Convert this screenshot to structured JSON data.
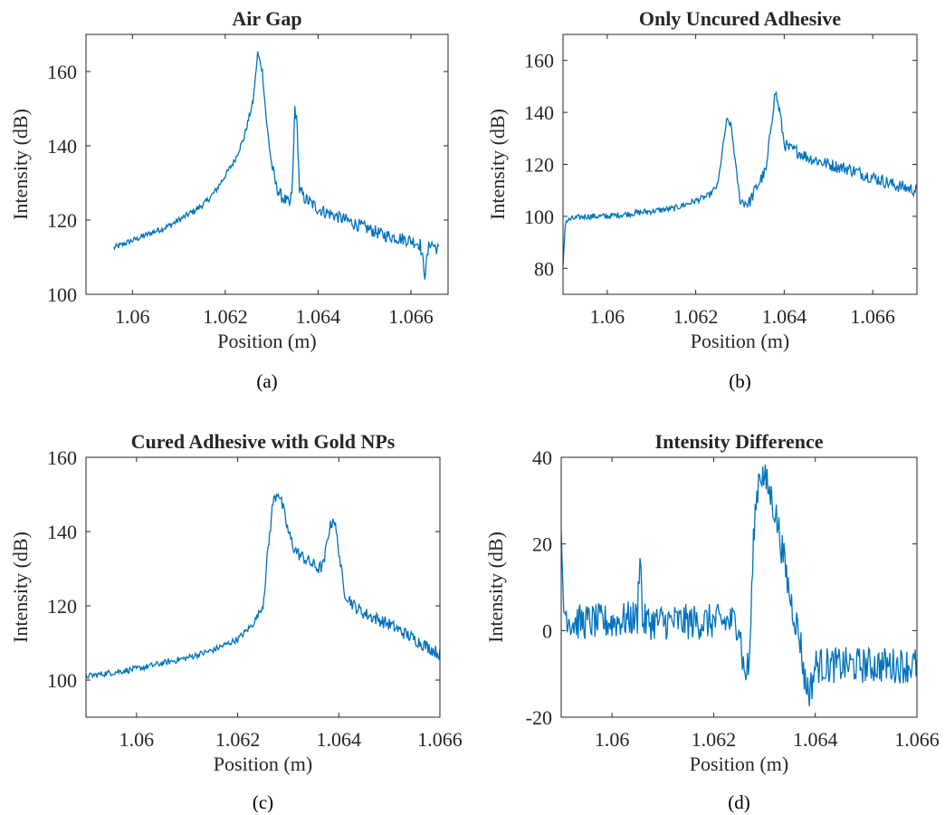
{
  "figure": {
    "line_color": "#0072BD",
    "axis_color": "#262626"
  },
  "chart_data": [
    {
      "type": "line",
      "title": "Air Gap",
      "caption": "(a)",
      "xlabel": "Position (m)",
      "ylabel": "Intensity (dB)",
      "xlim": [
        1.059,
        1.0668
      ],
      "ylim": [
        100,
        170
      ],
      "xticks": [
        1.06,
        1.062,
        1.064,
        1.066
      ],
      "xtick_labels": [
        "1.06",
        "1.062",
        "1.064",
        "1.066"
      ],
      "yticks": [
        100,
        120,
        140,
        160
      ],
      "ytick_labels": [
        "100",
        "120",
        "140",
        "160"
      ],
      "grid": false,
      "series": [
        {
          "x": [
            1.0596,
            1.0598,
            1.06,
            1.0602,
            1.0604,
            1.0606,
            1.0608,
            1.061,
            1.0612,
            1.0614,
            1.0616,
            1.0618,
            1.062,
            1.0622,
            1.0624,
            1.0626,
            1.0627,
            1.0628,
            1.0629,
            1.063,
            1.0631,
            1.0632,
            1.0634,
            1.06345,
            1.0635,
            1.06355,
            1.0636,
            1.0637,
            1.0638,
            1.064,
            1.0642,
            1.0644,
            1.0646,
            1.0648,
            1.065,
            1.0652,
            1.0654,
            1.0656,
            1.0658,
            1.066,
            1.0662,
            1.0663,
            1.0664,
            1.0666
          ],
          "y": [
            112.5,
            113.5,
            114.5,
            115.5,
            116.5,
            117.5,
            118.5,
            120,
            121.5,
            123,
            125,
            128,
            132,
            136,
            142,
            152,
            165,
            160,
            145,
            135,
            129,
            126.5,
            124,
            130,
            150.5,
            145,
            128,
            126,
            125,
            123,
            122,
            121,
            120,
            119,
            118,
            117,
            116,
            115.5,
            115,
            114.5,
            113.5,
            105.5,
            114,
            112
          ]
        }
      ]
    },
    {
      "type": "line",
      "title": "Only Uncured Adhesive",
      "caption": "(b)",
      "xlabel": "Position (m)",
      "ylabel": "Intensity (dB)",
      "xlim": [
        1.059,
        1.067
      ],
      "ylim": [
        70,
        170
      ],
      "xticks": [
        1.06,
        1.062,
        1.064,
        1.066
      ],
      "xtick_labels": [
        "1.06",
        "1.062",
        "1.064",
        "1.066"
      ],
      "yticks": [
        80,
        100,
        120,
        140,
        160
      ],
      "ytick_labels": [
        "80",
        "100",
        "120",
        "140",
        "160"
      ],
      "grid": false,
      "series": [
        {
          "x": [
            1.059,
            1.05905,
            1.0592,
            1.0595,
            1.06,
            1.0605,
            1.061,
            1.0615,
            1.062,
            1.0623,
            1.0625,
            1.0626,
            1.0627,
            1.0628,
            1.0629,
            1.063,
            1.0632,
            1.0634,
            1.0636,
            1.0637,
            1.0638,
            1.0639,
            1.064,
            1.0641,
            1.0643,
            1.0645,
            1.065,
            1.0655,
            1.066,
            1.0665,
            1.067
          ],
          "y": [
            80,
            98,
            99,
            100,
            100,
            101,
            102,
            103,
            106,
            108,
            112,
            125,
            137,
            135,
            120,
            106,
            105,
            112,
            118,
            135,
            148,
            140,
            128,
            126,
            125,
            123,
            120,
            118,
            115,
            112,
            110
          ]
        }
      ]
    },
    {
      "type": "line",
      "title": "Cured Adhesive with Gold NPs",
      "caption": "(c)",
      "xlabel": "Position (m)",
      "ylabel": "Intensity (dB)",
      "xlim": [
        1.059,
        1.066
      ],
      "ylim": [
        90,
        160
      ],
      "xticks": [
        1.06,
        1.062,
        1.064,
        1.066
      ],
      "xtick_labels": [
        "1.06",
        "1.062",
        "1.064",
        "1.066"
      ],
      "yticks": [
        100,
        120,
        140,
        160
      ],
      "ytick_labels": [
        "100",
        "120",
        "140",
        "160"
      ],
      "grid": false,
      "series": [
        {
          "x": [
            1.059,
            1.0595,
            1.06,
            1.0605,
            1.061,
            1.0615,
            1.062,
            1.0623,
            1.0625,
            1.0626,
            1.0627,
            1.0628,
            1.0629,
            1.063,
            1.0631,
            1.0632,
            1.0634,
            1.0636,
            1.0637,
            1.0638,
            1.0639,
            1.064,
            1.0641,
            1.0643,
            1.0645,
            1.065,
            1.0655,
            1.066
          ],
          "y": [
            101,
            102,
            103,
            104.5,
            106,
            108,
            111,
            115,
            120,
            135,
            148,
            151,
            146,
            140,
            136,
            134,
            132,
            130,
            131,
            140,
            144,
            135,
            124,
            120,
            118,
            115,
            111,
            107
          ]
        }
      ]
    },
    {
      "type": "line",
      "title": "Intensity Difference",
      "caption": "(d)",
      "xlabel": "Position (m)",
      "ylabel": "Intensity (dB)",
      "xlim": [
        1.059,
        1.066
      ],
      "ylim": [
        -20,
        40
      ],
      "xticks": [
        1.06,
        1.062,
        1.064,
        1.066
      ],
      "xtick_labels": [
        "1.06",
        "1.062",
        "1.064",
        "1.066"
      ],
      "yticks": [
        -20,
        0,
        20,
        40
      ],
      "ytick_labels": [
        "-20",
        "0",
        "20",
        "40"
      ],
      "grid": false,
      "series": [
        {
          "x": [
            1.059,
            1.05905,
            1.0592,
            1.0595,
            1.06,
            1.0605,
            1.06055,
            1.0606,
            1.061,
            1.0615,
            1.062,
            1.0625,
            1.0626,
            1.0627,
            1.0628,
            1.0629,
            1.063,
            1.0631,
            1.0632,
            1.0633,
            1.0634,
            1.0635,
            1.0636,
            1.0637,
            1.0638,
            1.0639,
            1.064,
            1.0645,
            1.065,
            1.0655,
            1.066
          ],
          "y": [
            20,
            5,
            2,
            2,
            2,
            3,
            20,
            2,
            2,
            2,
            2,
            2,
            -10,
            -8,
            25,
            37,
            35,
            32,
            28,
            22,
            15,
            8,
            3,
            -2,
            -12,
            -14,
            -8,
            -8,
            -8,
            -8,
            -8
          ]
        }
      ]
    }
  ]
}
